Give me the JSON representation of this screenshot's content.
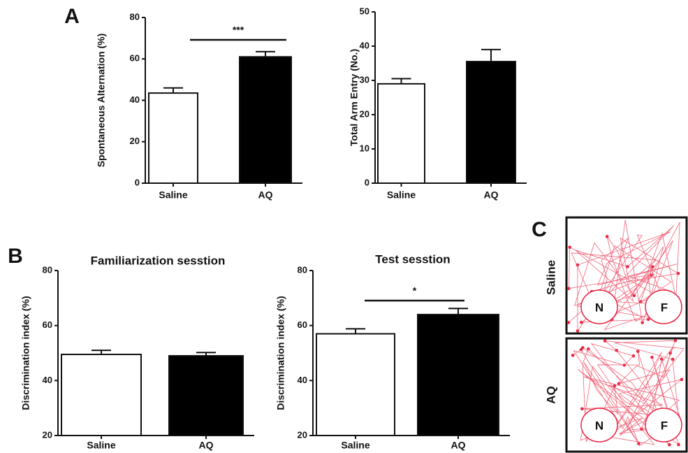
{
  "panel_labels": [
    "A",
    "B",
    "C"
  ],
  "chart_data": [
    {
      "type": "bar",
      "ylabel": "Spontaneous Alternation (%)",
      "categories": [
        "Saline",
        "AQ"
      ],
      "values": [
        43.5,
        61
      ],
      "errors": [
        2.5,
        2.5
      ],
      "colors": [
        "#ffffff",
        "#000000"
      ],
      "ylim": [
        0,
        80
      ],
      "yticks": [
        0,
        20,
        40,
        60,
        80
      ],
      "significance": "***"
    },
    {
      "type": "bar",
      "ylabel": "Total Arm Entry (No.)",
      "categories": [
        "Saline",
        "AQ"
      ],
      "values": [
        29,
        35.5
      ],
      "errors": [
        1.5,
        3.5
      ],
      "colors": [
        "#ffffff",
        "#000000"
      ],
      "ylim": [
        0,
        50
      ],
      "yticks": [
        0,
        10,
        20,
        30,
        40,
        50
      ]
    },
    {
      "type": "bar",
      "title": "Familiarization sesstion",
      "ylabel": "Discrimination index (%)",
      "categories": [
        "Saline",
        "AQ"
      ],
      "values": [
        49.5,
        49
      ],
      "errors": [
        1.5,
        1.2
      ],
      "colors": [
        "#ffffff",
        "#000000"
      ],
      "ylim": [
        20,
        80
      ],
      "yticks": [
        20,
        40,
        60,
        80
      ]
    },
    {
      "type": "bar",
      "title": "Test sesstion",
      "ylabel": "Discrimination index (%)",
      "categories": [
        "Saline",
        "AQ"
      ],
      "values": [
        57,
        64
      ],
      "errors": [
        1.8,
        2.2
      ],
      "colors": [
        "#ffffff",
        "#000000"
      ],
      "ylim": [
        20,
        80
      ],
      "yticks": [
        20,
        40,
        60,
        80
      ],
      "significance": "*"
    }
  ],
  "tracks": {
    "rows": [
      "Saline",
      "AQ"
    ],
    "zones": [
      "N",
      "F"
    ]
  }
}
